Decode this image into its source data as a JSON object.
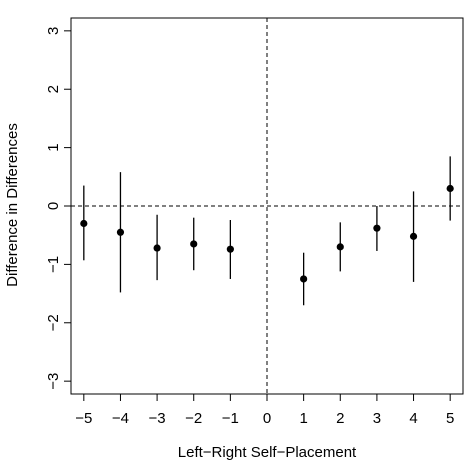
{
  "chart_data": {
    "type": "scatter",
    "title": "",
    "xlabel": "Left−Right Self−Placement",
    "ylabel": "Difference in Differences",
    "xlim": [
      -5.35,
      5.35
    ],
    "ylim": [
      -3.22,
      3.22
    ],
    "x_ticks": [
      -5,
      -4,
      -3,
      -2,
      -1,
      0,
      1,
      2,
      3,
      4,
      5
    ],
    "x_tick_labels": [
      "−5",
      "−4",
      "−3",
      "−2",
      "−1",
      "0",
      "1",
      "2",
      "3",
      "4",
      "5"
    ],
    "y_ticks": [
      -3,
      -2,
      -1,
      0,
      1,
      2,
      3
    ],
    "y_tick_labels": [
      "−3",
      "−2",
      "−1",
      "0",
      "1",
      "2",
      "3"
    ],
    "reference_lines": {
      "x": 0,
      "y": 0,
      "style": "dashed"
    },
    "grid": false,
    "points": [
      {
        "x": -5,
        "y": -0.3,
        "lo": -0.93,
        "hi": 0.35
      },
      {
        "x": -4,
        "y": -0.45,
        "lo": -1.48,
        "hi": 0.58
      },
      {
        "x": -3,
        "y": -0.72,
        "lo": -1.27,
        "hi": -0.15
      },
      {
        "x": -2,
        "y": -0.65,
        "lo": -1.1,
        "hi": -0.2
      },
      {
        "x": -1,
        "y": -0.74,
        "lo": -1.25,
        "hi": -0.24
      },
      {
        "x": 1,
        "y": -1.25,
        "lo": -1.7,
        "hi": -0.8
      },
      {
        "x": 2,
        "y": -0.7,
        "lo": -1.12,
        "hi": -0.28
      },
      {
        "x": 3,
        "y": -0.38,
        "lo": -0.77,
        "hi": 0.0
      },
      {
        "x": 4,
        "y": -0.52,
        "lo": -1.3,
        "hi": 0.25
      },
      {
        "x": 5,
        "y": 0.3,
        "lo": -0.25,
        "hi": 0.85
      }
    ]
  }
}
